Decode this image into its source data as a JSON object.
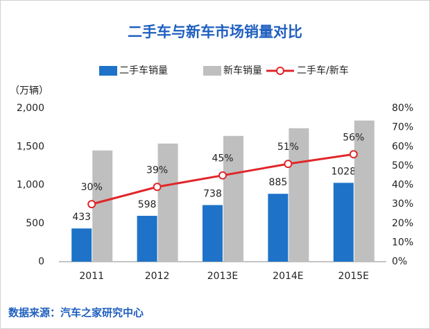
{
  "chart_data": {
    "type": "bar",
    "title": "二手车与新车市场销量对比",
    "y_label": "（万辆）",
    "source": "数据来源：汽车之家研究中心",
    "categories": [
      "2011",
      "2012",
      "2013E",
      "2014E",
      "2015E"
    ],
    "series": [
      {
        "name": "二手车销量",
        "color": "#1e73c8",
        "values": [
          433,
          598,
          738,
          885,
          1028
        ]
      },
      {
        "name": "新车销量",
        "color": "#bfbfbf",
        "values": [
          1450,
          1540,
          1640,
          1740,
          1840
        ]
      },
      {
        "name": "二手车/新车",
        "color": "#e0262a",
        "type": "line",
        "axis": "y2",
        "values": [
          30,
          39,
          45,
          51,
          56
        ],
        "value_labels": [
          "30%",
          "39%",
          "45%",
          "51%",
          "56%"
        ]
      }
    ],
    "ylim": [
      0,
      2000
    ],
    "yticks": [
      0,
      500,
      {
        "value": 1000,
        "label": "1,000"
      },
      {
        "value": 1500,
        "label": "1,500"
      },
      {
        "value": 2000,
        "label": "2,000"
      }
    ],
    "y2lim": [
      0,
      80
    ],
    "y2ticks": [
      {
        "value": 0,
        "label": "0%"
      },
      {
        "value": 10,
        "label": "10%"
      },
      {
        "value": 20,
        "label": "20%"
      },
      {
        "value": 30,
        "label": "30%"
      },
      {
        "value": 40,
        "label": "40%"
      },
      {
        "value": 50,
        "label": "50%"
      },
      {
        "value": 60,
        "label": "60%"
      },
      {
        "value": 70,
        "label": "70%"
      },
      {
        "value": 80,
        "label": "80%"
      }
    ],
    "grid": false
  }
}
